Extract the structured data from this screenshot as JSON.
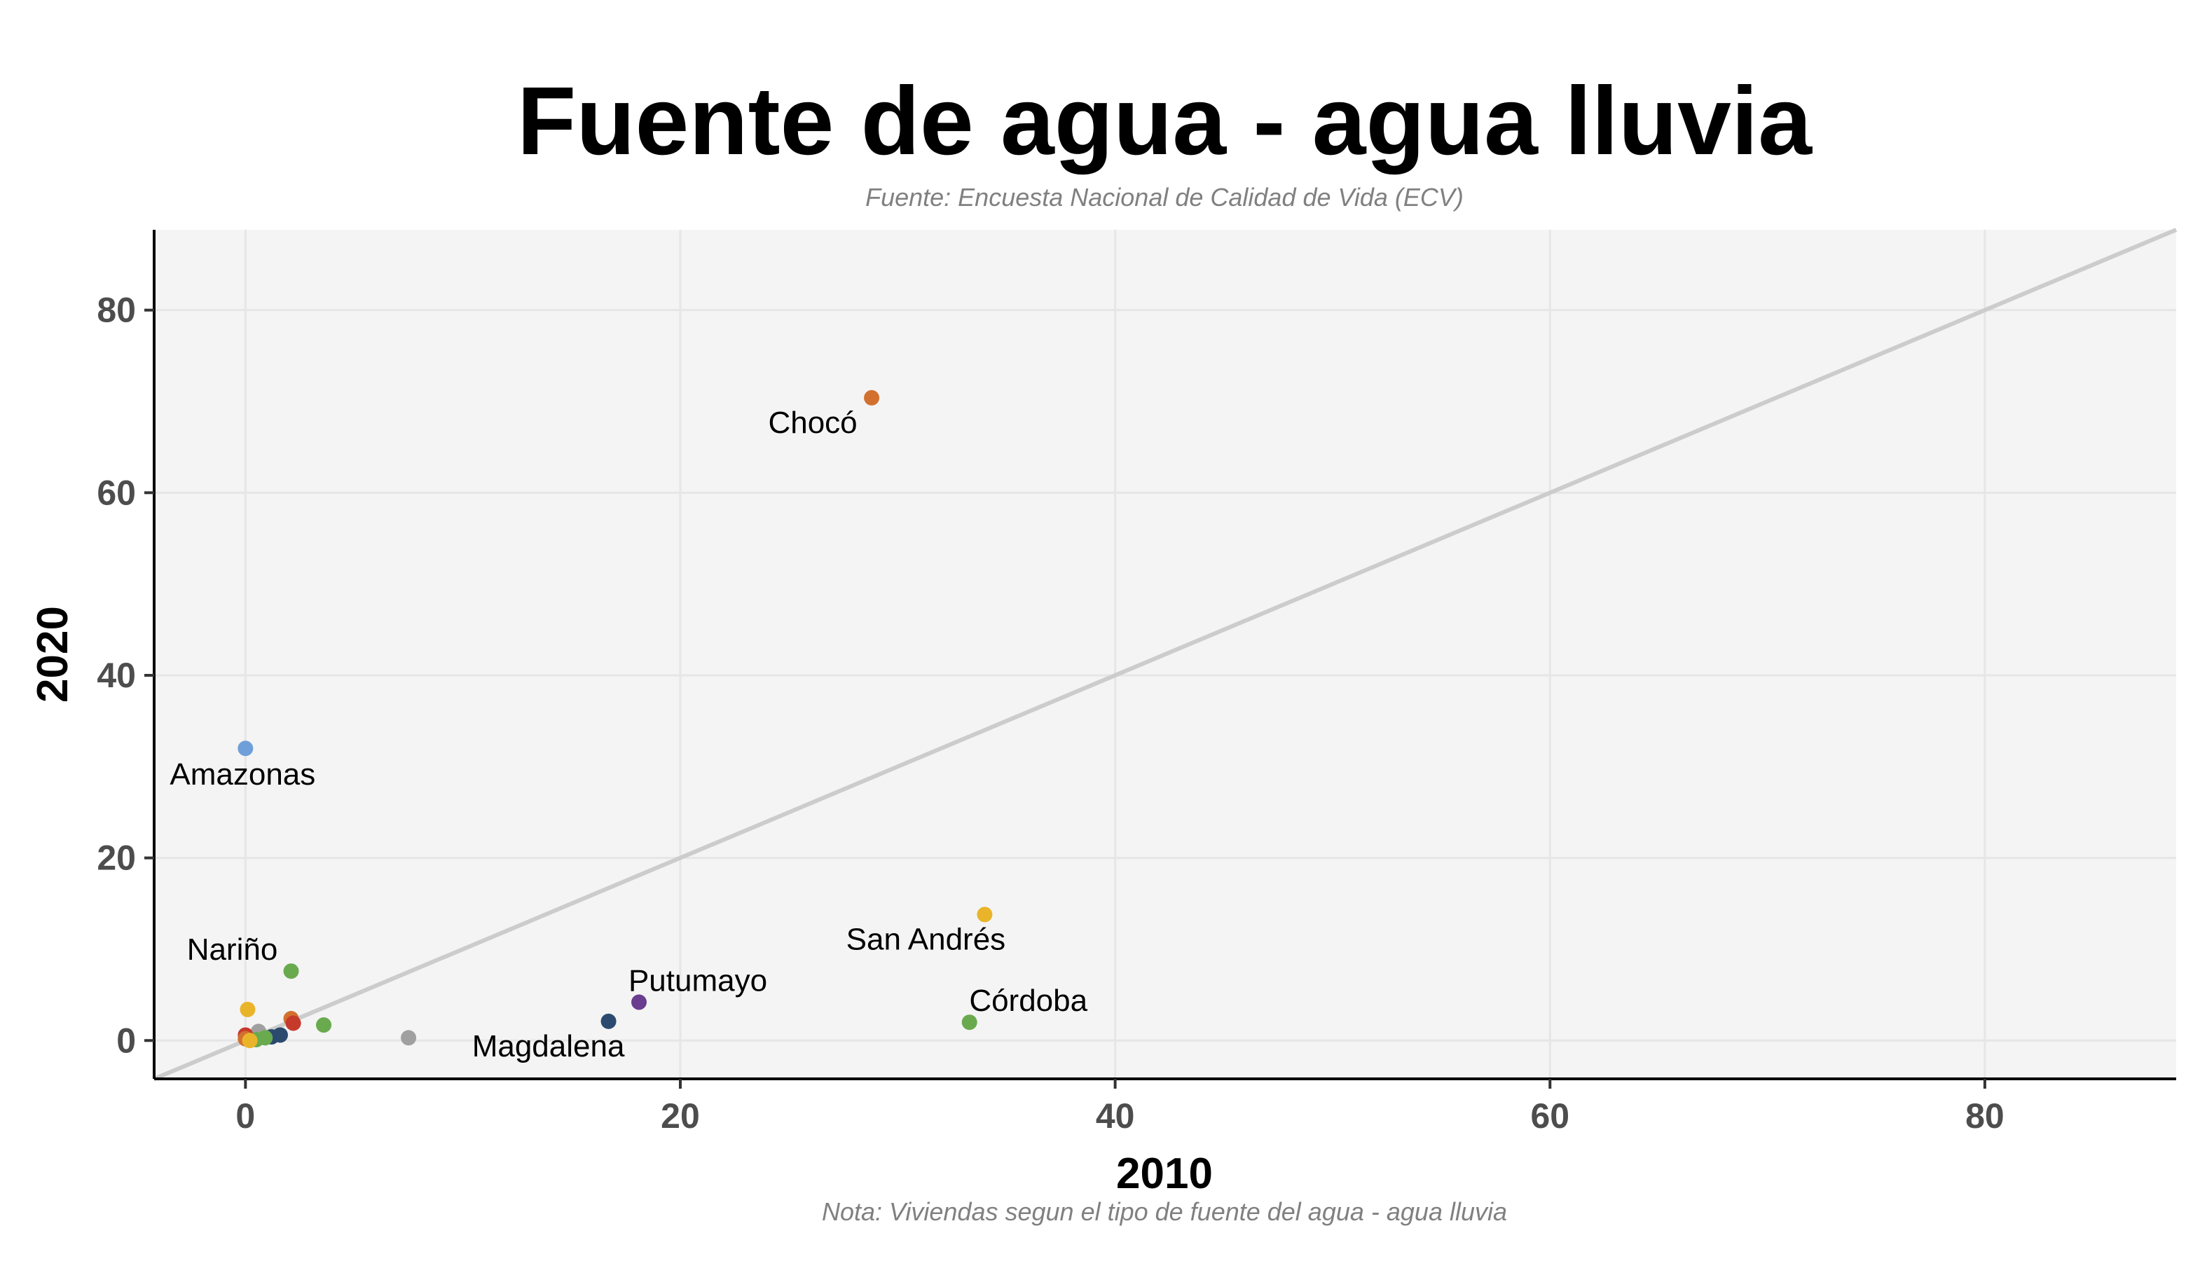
{
  "chart_data": {
    "type": "scatter",
    "title": "Fuente de agua - agua lluvia",
    "subtitle": "Fuente: Encuesta Nacional de Calidad de Vida (ECV)",
    "caption": "Nota: Viviendas segun el tipo de fuente del agua - agua lluvia",
    "xlabel": "2010",
    "ylabel": "2020",
    "xlim": [
      -4.2,
      88.8
    ],
    "ylim": [
      -4.2,
      88.8
    ],
    "xticks": [
      "0",
      "20",
      "40",
      "60",
      "80"
    ],
    "yticks": [
      "0",
      "20",
      "40",
      "60",
      "80"
    ],
    "xtick_values": [
      0,
      20,
      40,
      60,
      80
    ],
    "ytick_values": [
      0,
      20,
      40,
      60,
      80
    ],
    "grid": true,
    "reference_line": "y = x",
    "reference_line_color": "#cccccc",
    "panel_background": "#f4f4f4",
    "points": [
      {
        "x": 28.8,
        "y": 70.4,
        "color": "#d2702f",
        "label": "Chocó"
      },
      {
        "x": 0.0,
        "y": 32.0,
        "color": "#6f9fd8",
        "label": "Amazonas"
      },
      {
        "x": 34.0,
        "y": 13.8,
        "color": "#e9b42a",
        "label": "San Andrés"
      },
      {
        "x": 33.3,
        "y": 2.0,
        "color": "#6aaa4f",
        "label": "Córdoba"
      },
      {
        "x": 18.1,
        "y": 4.2,
        "color": "#6a3d8e",
        "label": "Putumayo"
      },
      {
        "x": 16.7,
        "y": 2.1,
        "color": "#2b4a6e",
        "label": "Magdalena"
      },
      {
        "x": 2.1,
        "y": 7.6,
        "color": "#6aaa4f",
        "label": "Nariño"
      },
      {
        "x": 0.1,
        "y": 3.4,
        "color": "#e9b42a",
        "label": ""
      },
      {
        "x": 2.1,
        "y": 2.4,
        "color": "#d2702f",
        "label": ""
      },
      {
        "x": 2.2,
        "y": 1.9,
        "color": "#c63a2b",
        "label": ""
      },
      {
        "x": 3.6,
        "y": 1.7,
        "color": "#6aaa4f",
        "label": ""
      },
      {
        "x": 7.5,
        "y": 0.3,
        "color": "#a0a0a0",
        "label": ""
      },
      {
        "x": 0.6,
        "y": 1.0,
        "color": "#a0a0a0",
        "label": ""
      },
      {
        "x": 1.6,
        "y": 0.6,
        "color": "#2b4a6e",
        "label": ""
      },
      {
        "x": 1.2,
        "y": 0.4,
        "color": "#2b4a6e",
        "label": ""
      },
      {
        "x": 0.9,
        "y": 0.3,
        "color": "#6aaa4f",
        "label": ""
      },
      {
        "x": 0.5,
        "y": 0.1,
        "color": "#6aaa4f",
        "label": ""
      },
      {
        "x": 0.0,
        "y": 0.6,
        "color": "#c63a2b",
        "label": ""
      },
      {
        "x": 0.0,
        "y": 0.2,
        "color": "#d2702f",
        "label": ""
      },
      {
        "x": 0.2,
        "y": 0.0,
        "color": "#e9b42a",
        "label": ""
      }
    ]
  }
}
